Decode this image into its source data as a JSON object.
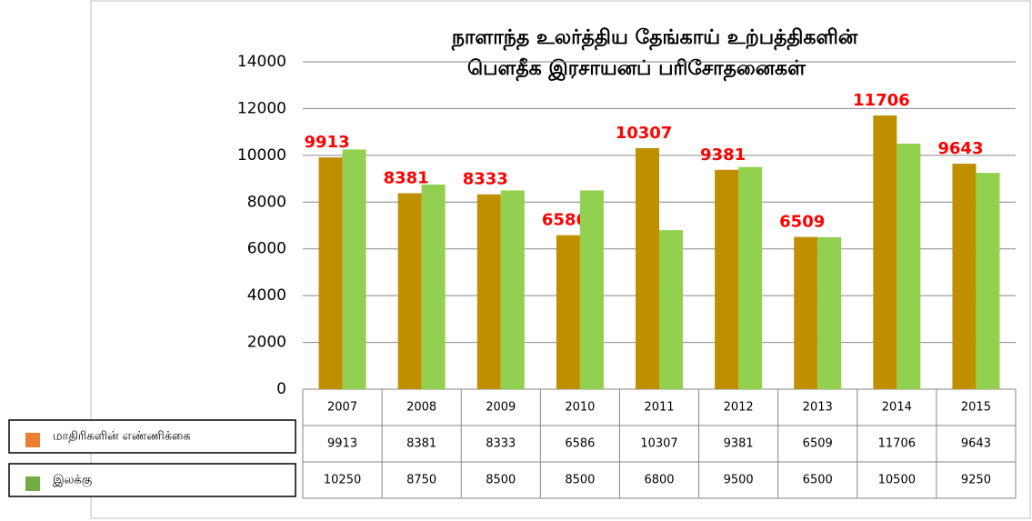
{
  "chart_data": {
    "type": "bar",
    "title": [
      "நாளாந்த உலர்த்திய தேங்காய் உற்பத்திகளின்",
      "பௌதீக இரசாயனப் பரிசோதனைகள்"
    ],
    "categories": [
      "2007",
      "2008",
      "2009",
      "2010",
      "2011",
      "2012",
      "2013",
      "2014",
      "2015"
    ],
    "series": [
      {
        "name": "மாதிரிகளின் எண்ணிக்கை",
        "color": "#bf8f00",
        "legend_color": "#ed7d31",
        "data_labels": true,
        "values": [
          9913,
          8381,
          8333,
          6586,
          10307,
          9381,
          6509,
          11706,
          9643
        ]
      },
      {
        "name": "இலக்கு",
        "color": "#92d050",
        "legend_color": "#70ad47",
        "data_labels": false,
        "values": [
          10250,
          8750,
          8500,
          8500,
          6800,
          9500,
          6500,
          10500,
          9250
        ]
      }
    ],
    "ylim": [
      0,
      14000
    ],
    "yticks": [
      0,
      2000,
      4000,
      6000,
      8000,
      10000,
      12000,
      14000
    ],
    "grid": true
  }
}
